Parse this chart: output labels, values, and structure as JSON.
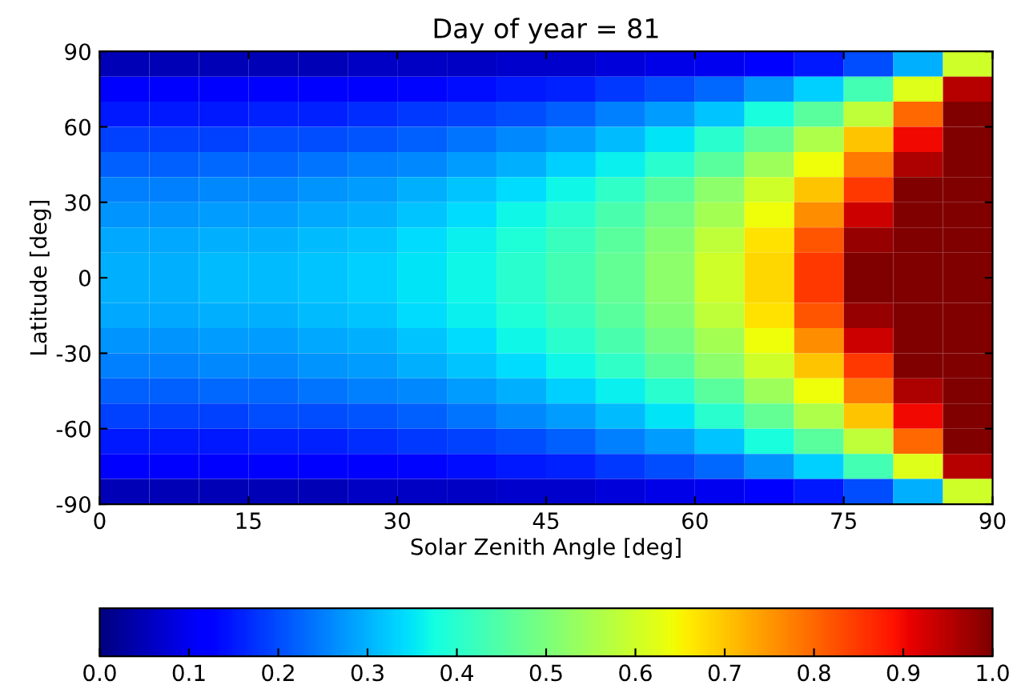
{
  "chart_data": {
    "type": "heatmap",
    "title": "Day of year = 81",
    "xlabel": "Solar Zenith Angle [deg]",
    "ylabel": "Latitude [deg]",
    "x": [
      2.5,
      7.5,
      12.5,
      17.5,
      22.5,
      27.5,
      32.5,
      37.5,
      42.5,
      47.5,
      52.5,
      57.5,
      62.5,
      67.5,
      72.5,
      77.5,
      82.5,
      87.5
    ],
    "y": [
      85,
      75,
      65,
      55,
      45,
      35,
      25,
      15,
      5,
      -5,
      -15,
      -25,
      -35,
      -45,
      -55,
      -65,
      -75,
      -85
    ],
    "xlim": [
      0,
      90
    ],
    "xticks": [
      0,
      15,
      30,
      45,
      60,
      75,
      90
    ],
    "ylim": [
      -90,
      90
    ],
    "yticks": [
      -90,
      -60,
      -30,
      0,
      30,
      60,
      90
    ],
    "clim": [
      0,
      1
    ],
    "cticks": [
      {
        "value": 0,
        "label": "0.0"
      },
      0.1,
      0.2,
      0.3,
      0.4,
      0.5,
      0.6,
      0.7,
      0.8,
      0.9,
      {
        "value": 1,
        "label": "1.0"
      }
    ],
    "grid": false,
    "cells": [
      [
        0.05,
        0.05,
        0.05,
        0.05,
        0.05,
        0.06,
        0.06,
        0.06,
        0.07,
        0.07,
        0.08,
        0.09,
        0.1,
        0.12,
        0.15,
        0.2,
        0.3,
        0.6
      ],
      [
        0.11,
        0.11,
        0.11,
        0.11,
        0.12,
        0.12,
        0.13,
        0.14,
        0.15,
        0.16,
        0.18,
        0.2,
        0.23,
        0.27,
        0.33,
        0.43,
        0.62,
        0.95
      ],
      [
        0.15,
        0.15,
        0.15,
        0.16,
        0.16,
        0.17,
        0.18,
        0.19,
        0.2,
        0.22,
        0.25,
        0.28,
        0.32,
        0.38,
        0.46,
        0.58,
        0.8,
        1.0
      ],
      [
        0.19,
        0.19,
        0.19,
        0.2,
        0.2,
        0.21,
        0.22,
        0.24,
        0.26,
        0.28,
        0.31,
        0.35,
        0.4,
        0.47,
        0.56,
        0.7,
        0.9,
        1.0
      ],
      [
        0.22,
        0.22,
        0.23,
        0.23,
        0.24,
        0.25,
        0.26,
        0.28,
        0.3,
        0.33,
        0.36,
        0.4,
        0.46,
        0.54,
        0.64,
        0.78,
        0.96,
        1.0
      ],
      [
        0.25,
        0.25,
        0.26,
        0.26,
        0.27,
        0.28,
        0.3,
        0.32,
        0.34,
        0.37,
        0.41,
        0.46,
        0.52,
        0.6,
        0.7,
        0.85,
        1.0,
        1.0
      ],
      [
        0.27,
        0.27,
        0.28,
        0.28,
        0.29,
        0.3,
        0.32,
        0.34,
        0.37,
        0.4,
        0.44,
        0.49,
        0.55,
        0.64,
        0.76,
        0.93,
        1.0,
        1.0
      ],
      [
        0.29,
        0.29,
        0.3,
        0.3,
        0.31,
        0.32,
        0.34,
        0.36,
        0.39,
        0.42,
        0.46,
        0.51,
        0.58,
        0.67,
        0.82,
        0.98,
        1.0,
        1.0
      ],
      [
        0.3,
        0.3,
        0.31,
        0.31,
        0.32,
        0.33,
        0.35,
        0.37,
        0.4,
        0.43,
        0.47,
        0.52,
        0.6,
        0.68,
        0.85,
        1.0,
        1.0,
        1.0
      ],
      [
        0.3,
        0.3,
        0.31,
        0.31,
        0.32,
        0.33,
        0.35,
        0.37,
        0.4,
        0.43,
        0.47,
        0.52,
        0.6,
        0.68,
        0.85,
        1.0,
        1.0,
        1.0
      ],
      [
        0.29,
        0.29,
        0.3,
        0.3,
        0.31,
        0.32,
        0.34,
        0.36,
        0.39,
        0.42,
        0.46,
        0.51,
        0.58,
        0.67,
        0.82,
        0.98,
        1.0,
        1.0
      ],
      [
        0.27,
        0.27,
        0.28,
        0.28,
        0.29,
        0.3,
        0.32,
        0.34,
        0.37,
        0.4,
        0.44,
        0.49,
        0.55,
        0.64,
        0.76,
        0.93,
        1.0,
        1.0
      ],
      [
        0.25,
        0.25,
        0.26,
        0.26,
        0.27,
        0.28,
        0.3,
        0.32,
        0.34,
        0.37,
        0.41,
        0.46,
        0.52,
        0.6,
        0.7,
        0.85,
        1.0,
        1.0
      ],
      [
        0.22,
        0.22,
        0.23,
        0.23,
        0.24,
        0.25,
        0.26,
        0.28,
        0.3,
        0.33,
        0.36,
        0.4,
        0.46,
        0.54,
        0.64,
        0.78,
        0.96,
        1.0
      ],
      [
        0.19,
        0.19,
        0.19,
        0.2,
        0.2,
        0.21,
        0.22,
        0.24,
        0.26,
        0.28,
        0.31,
        0.35,
        0.4,
        0.47,
        0.56,
        0.7,
        0.9,
        1.0
      ],
      [
        0.15,
        0.15,
        0.15,
        0.16,
        0.16,
        0.17,
        0.18,
        0.19,
        0.2,
        0.22,
        0.25,
        0.28,
        0.32,
        0.38,
        0.46,
        0.58,
        0.8,
        1.0
      ],
      [
        0.11,
        0.11,
        0.11,
        0.11,
        0.12,
        0.12,
        0.13,
        0.14,
        0.15,
        0.16,
        0.18,
        0.2,
        0.23,
        0.27,
        0.33,
        0.43,
        0.62,
        0.95
      ],
      [
        0.05,
        0.05,
        0.05,
        0.05,
        0.05,
        0.06,
        0.06,
        0.06,
        0.07,
        0.07,
        0.08,
        0.09,
        0.1,
        0.12,
        0.15,
        0.2,
        0.3,
        0.6
      ]
    ]
  }
}
